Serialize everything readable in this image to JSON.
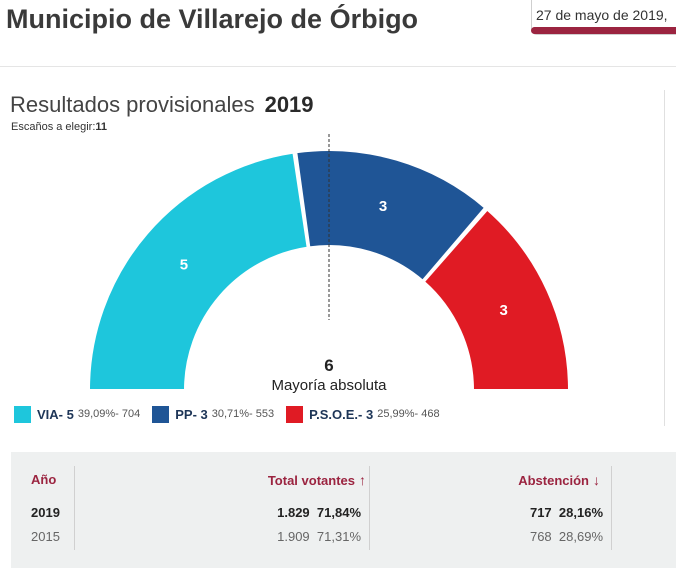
{
  "header": {
    "title": "Municipio de Villarejo de Órbigo",
    "date": "27 de mayo de 2019,"
  },
  "results": {
    "heading": "Resultados provisionales",
    "year": "2019",
    "seats_label": "Escaños a elegir:",
    "seats_value": "11",
    "majority_number": "6",
    "majority_label": "Mayoría absoluta"
  },
  "colors": {
    "brand": "#9b2440",
    "via": "#1ec6dc",
    "pp": "#1f5596",
    "psoe": "#e01b24"
  },
  "chart_data": {
    "type": "pie",
    "title": "Resultados provisionales 2019",
    "total_seats": 11,
    "majority": 6,
    "series": [
      {
        "name": "VIA",
        "seats": 5,
        "percent": 39.09,
        "votes": 704,
        "color": "#1ec6dc"
      },
      {
        "name": "PP",
        "seats": 3,
        "percent": 30.71,
        "votes": 553,
        "color": "#1f5596"
      },
      {
        "name": "P.S.O.E.",
        "seats": 3,
        "percent": 25.99,
        "votes": 468,
        "color": "#e01b24"
      }
    ]
  },
  "legend": [
    {
      "label": "VIA- 5",
      "stat": "39,09%- 704"
    },
    {
      "label": "PP- 3",
      "stat": "30,71%- 553"
    },
    {
      "label": "P.S.O.E.- 3",
      "stat": "25,99%- 468"
    }
  ],
  "table": {
    "headers": {
      "year": "Año",
      "voters": "Total votantes",
      "voters_arrow": "↑",
      "abstention": "Abstención",
      "abstention_arrow": "↓"
    },
    "rows": [
      {
        "year": "2019",
        "voters_count": "1.829",
        "voters_pct": "71,84%",
        "abst_count": "717",
        "abst_pct": "28,16%"
      },
      {
        "year": "2015",
        "voters_count": "1.909",
        "voters_pct": "71,31%",
        "abst_count": "768",
        "abst_pct": "28,69%"
      }
    ]
  }
}
